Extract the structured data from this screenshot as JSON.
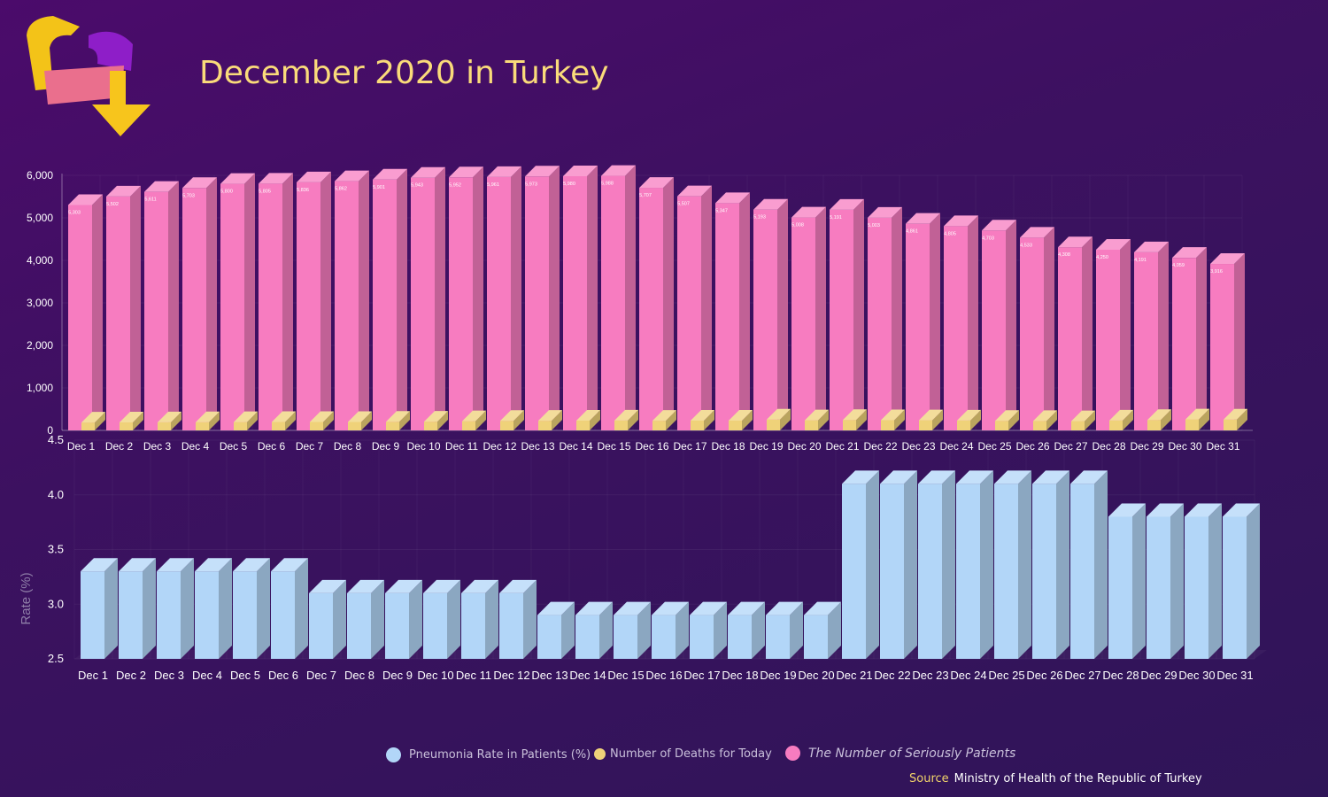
{
  "title": "December 2020 in Turkey",
  "colors": {
    "pneumonia": "#b2d6f8",
    "deaths": "#efd279",
    "serious": "#f77cc0",
    "title": "#fadb7a"
  },
  "legend": {
    "pneumonia": "Pneumonia Rate in Patients (%)",
    "deaths": "Number of Deaths for Today",
    "serious": "The Number of Seriously Patients"
  },
  "source": {
    "label": "Source",
    "text": "Ministry of Health of the Republic of Turkey"
  },
  "chart_data": [
    {
      "type": "bar",
      "categories": [
        "Dec 1",
        "Dec 2",
        "Dec 3",
        "Dec 4",
        "Dec 5",
        "Dec 6",
        "Dec 7",
        "Dec 8",
        "Dec 9",
        "Dec 10",
        "Dec 11",
        "Dec 12",
        "Dec 13",
        "Dec 14",
        "Dec 15",
        "Dec 16",
        "Dec 17",
        "Dec 18",
        "Dec 19",
        "Dec 20",
        "Dec 21",
        "Dec 22",
        "Dec 23",
        "Dec 24",
        "Dec 25",
        "Dec 26",
        "Dec 27",
        "Dec 28",
        "Dec 29",
        "Dec 30",
        "Dec 31"
      ],
      "series": [
        {
          "name": "The Number of Seriously Patients",
          "values": [
            5303,
            5502,
            5611,
            5703,
            5800,
            5805,
            5836,
            5862,
            5901,
            5943,
            5952,
            5961,
            5973,
            5980,
            5988,
            5707,
            5507,
            5347,
            5193,
            5008,
            5191,
            5003,
            4861,
            4805,
            4703,
            4533,
            4308,
            4250,
            4191,
            4059,
            3916
          ],
          "labels": [
            "5,303",
            "5,502",
            "5,611",
            "5,703",
            "5,800",
            "5,805",
            "5,836",
            "5,862",
            "5,901",
            "5,943",
            "5,952",
            "5,961",
            "5,973",
            "5,980",
            "5,988",
            "5,707",
            "5,507",
            "5,347",
            "5,193",
            "5,008",
            "5,191",
            "5,003",
            "4,861",
            "4,805",
            "4,703",
            "4,533",
            "4,308",
            "4,250",
            "4,191",
            "4,059",
            "3,916"
          ]
        },
        {
          "name": "Number of Deaths for Today",
          "values": [
            185,
            187,
            190,
            193,
            195,
            197,
            198,
            199,
            203,
            205,
            215,
            224,
            226,
            229,
            231,
            226,
            230,
            229,
            254,
            237,
            246,
            239,
            238,
            231,
            225,
            221,
            217,
            231,
            246,
            259,
            254
          ]
        }
      ],
      "yticks": [
        "0",
        "1,000",
        "2,000",
        "3,000",
        "4,000",
        "5,000",
        "6,000"
      ],
      "ylim": [
        0,
        6000
      ]
    },
    {
      "type": "bar",
      "categories": [
        "Dec 1",
        "Dec 2",
        "Dec 3",
        "Dec 4",
        "Dec 5",
        "Dec 6",
        "Dec 7",
        "Dec 8",
        "Dec 9",
        "Dec 10",
        "Dec 11",
        "Dec 12",
        "Dec 13",
        "Dec 14",
        "Dec 15",
        "Dec 16",
        "Dec 17",
        "Dec 18",
        "Dec 19",
        "Dec 20",
        "Dec 21",
        "Dec 22",
        "Dec 23",
        "Dec 24",
        "Dec 25",
        "Dec 26",
        "Dec 27",
        "Dec 28",
        "Dec 29",
        "Dec 30",
        "Dec 31"
      ],
      "series": [
        {
          "name": "Pneumonia Rate in Patients (%)",
          "values": [
            3.3,
            3.3,
            3.3,
            3.3,
            3.3,
            3.3,
            3.1,
            3.1,
            3.1,
            3.1,
            3.1,
            3.1,
            2.9,
            2.9,
            2.9,
            2.9,
            2.9,
            2.9,
            2.9,
            2.9,
            4.1,
            4.1,
            4.1,
            4.1,
            4.1,
            4.1,
            4.1,
            3.8,
            3.8,
            3.8,
            3.8
          ]
        }
      ],
      "ylabel": "Rate (%)",
      "yticks": [
        "2.5",
        "3.0",
        "3.5",
        "4.0",
        "4.5"
      ],
      "ylim": [
        2.5,
        4.5
      ]
    }
  ]
}
